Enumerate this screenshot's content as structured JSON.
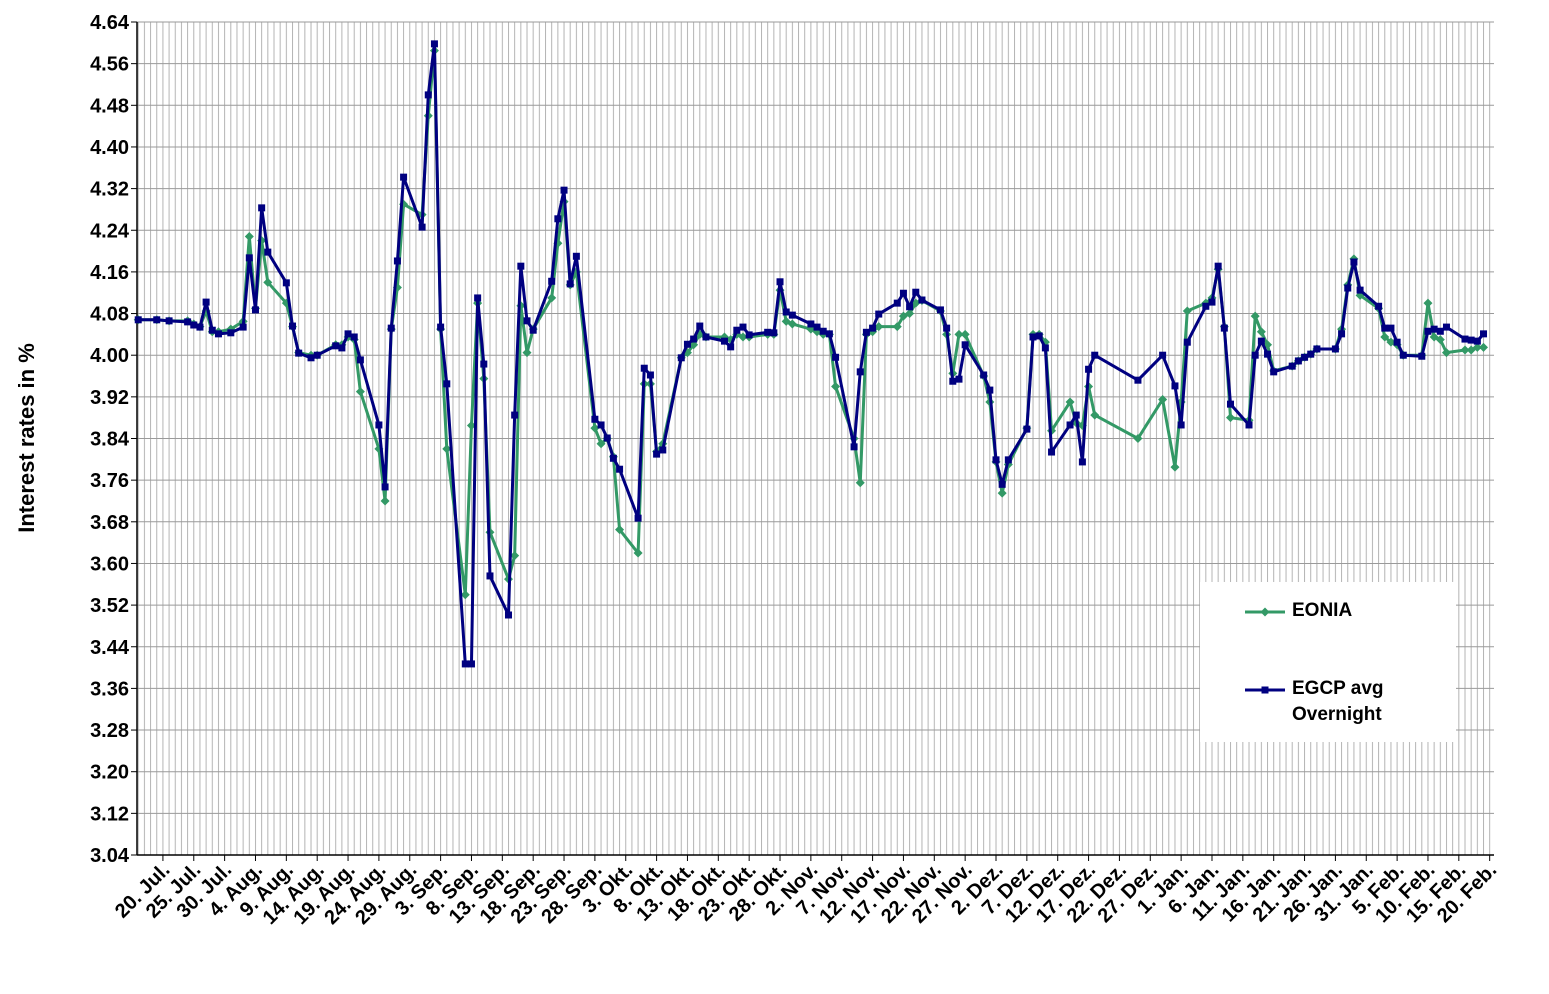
{
  "chart_data": {
    "type": "line",
    "y_label": "Interest rates in %",
    "xlim": [
      -4.2,
      215.7
    ],
    "ylim": [
      3.04,
      4.64
    ],
    "grid": true,
    "yticks": [
      3.04,
      3.12,
      {
        "value": 3.2,
        "label": "3.20"
      },
      3.28,
      3.36,
      3.44,
      3.52,
      {
        "value": 3.6,
        "label": "3.60"
      },
      3.68,
      3.76,
      3.84,
      3.92,
      {
        "value": 4.0,
        "label": "4.00"
      },
      4.08,
      4.16,
      4.24,
      4.32,
      {
        "value": 4.4,
        "label": "4.40"
      },
      4.48,
      4.56,
      4.64
    ],
    "xticks": [
      {
        "value": 0,
        "label": "20. Jul."
      },
      {
        "value": 5,
        "label": "25. Jul."
      },
      {
        "value": 10,
        "label": "30. Jul."
      },
      {
        "value": 15,
        "label": "4. Aug."
      },
      {
        "value": 20,
        "label": "9. Aug."
      },
      {
        "value": 25,
        "label": "14. Aug."
      },
      {
        "value": 30,
        "label": "19. Aug."
      },
      {
        "value": 35,
        "label": "24. Aug."
      },
      {
        "value": 40,
        "label": "29. Aug."
      },
      {
        "value": 45,
        "label": "3. Sep."
      },
      {
        "value": 50,
        "label": "8. Sep."
      },
      {
        "value": 55,
        "label": "13. Sep."
      },
      {
        "value": 60,
        "label": "18. Sep."
      },
      {
        "value": 65,
        "label": "23. Sep."
      },
      {
        "value": 70,
        "label": "28. Sep."
      },
      {
        "value": 75,
        "label": "3. Okt."
      },
      {
        "value": 80,
        "label": "8. Okt."
      },
      {
        "value": 85,
        "label": "13. Okt."
      },
      {
        "value": 90,
        "label": "18. Okt."
      },
      {
        "value": 95,
        "label": "23. Okt."
      },
      {
        "value": 100,
        "label": "28. Okt."
      },
      {
        "value": 105,
        "label": "2. Nov."
      },
      {
        "value": 110,
        "label": "7. Nov."
      },
      {
        "value": 115,
        "label": "12. Nov."
      },
      {
        "value": 120,
        "label": "17. Nov."
      },
      {
        "value": 125,
        "label": "22. Nov."
      },
      {
        "value": 130,
        "label": "27. Nov."
      },
      {
        "value": 135,
        "label": "2. Dez."
      },
      {
        "value": 140,
        "label": "7. Dez."
      },
      {
        "value": 145,
        "label": "12. Dez."
      },
      {
        "value": 150,
        "label": "17. Dez."
      },
      {
        "value": 155,
        "label": "22. Dez."
      },
      {
        "value": 160,
        "label": "27. Dez."
      },
      {
        "value": 165,
        "label": "1. Jan."
      },
      {
        "value": 170,
        "label": "6. Jan."
      },
      {
        "value": 175,
        "label": "11. Jan."
      },
      {
        "value": 180,
        "label": "16. Jan."
      },
      {
        "value": 185,
        "label": "21. Jan."
      },
      {
        "value": 190,
        "label": "26. Jan."
      },
      {
        "value": 195,
        "label": "31. Jan."
      },
      {
        "value": 200,
        "label": "5. Feb."
      },
      {
        "value": 205,
        "label": "10. Feb."
      },
      {
        "value": 210,
        "label": "15. Feb."
      },
      {
        "value": 215,
        "label": "20. Feb."
      }
    ],
    "series": [
      {
        "name": "EONIA",
        "color": "#339966",
        "marker": "diamond",
        "x": [
          -4,
          -1,
          1,
          4,
          5,
          6,
          7,
          8,
          9,
          11,
          13,
          14,
          15,
          16,
          17,
          20,
          21,
          22,
          24,
          25,
          28,
          29,
          30,
          31,
          32,
          35,
          36,
          37,
          38,
          39,
          42,
          43,
          44,
          45,
          46,
          49,
          50,
          51,
          52,
          53,
          56,
          57,
          58,
          59,
          60,
          63,
          64,
          65,
          66,
          67,
          70,
          71,
          72,
          73,
          74,
          77,
          78,
          79,
          80,
          81,
          84,
          85,
          86,
          87,
          88,
          91,
          92,
          93,
          94,
          95,
          98,
          99,
          100,
          101,
          102,
          105,
          106,
          107,
          108,
          109,
          112,
          113,
          114,
          115,
          116,
          119,
          120,
          121,
          122,
          123,
          126,
          127,
          128,
          129,
          130,
          133,
          134,
          135,
          136,
          137,
          140,
          141,
          142,
          143,
          144,
          147,
          148,
          149,
          150,
          151,
          158,
          162,
          164,
          165,
          166,
          169,
          170,
          171,
          172,
          173,
          176,
          177,
          178,
          179,
          180,
          183,
          184,
          185,
          186,
          187,
          190,
          191,
          192,
          193,
          194,
          197,
          198,
          199,
          200,
          201,
          204,
          205,
          206,
          207,
          208,
          211,
          212,
          213,
          214
        ],
        "values": [
          4.068,
          4.068,
          4.066,
          4.066,
          4.06,
          4.055,
          4.085,
          4.045,
          4.045,
          4.05,
          4.065,
          4.228,
          4.09,
          4.22,
          4.14,
          4.1,
          4.055,
          4.005,
          4.0,
          4.0,
          4.02,
          4.02,
          4.035,
          4.03,
          3.93,
          3.82,
          3.72,
          4.05,
          4.13,
          4.29,
          4.27,
          4.46,
          4.585,
          4.05,
          3.82,
          3.54,
          3.865,
          4.1,
          3.955,
          3.66,
          3.57,
          3.615,
          4.095,
          4.005,
          4.05,
          4.11,
          4.215,
          4.295,
          4.135,
          4.16,
          3.86,
          3.83,
          3.84,
          3.805,
          3.665,
          3.62,
          3.945,
          3.945,
          3.815,
          3.83,
          3.995,
          4.005,
          4.02,
          4.04,
          4.035,
          4.035,
          4.03,
          4.04,
          4.035,
          4.035,
          4.04,
          4.04,
          4.125,
          4.065,
          4.06,
          4.05,
          4.045,
          4.04,
          4.04,
          3.94,
          3.84,
          3.755,
          4.04,
          4.045,
          4.055,
          4.055,
          4.075,
          4.08,
          4.1,
          4.105,
          4.085,
          4.04,
          3.965,
          4.04,
          4.04,
          3.96,
          3.91,
          3.795,
          3.735,
          3.79,
          3.86,
          4.04,
          4.04,
          4.025,
          3.855,
          3.91,
          3.87,
          3.865,
          3.94,
          3.885,
          3.84,
          3.915,
          3.785,
          3.91,
          4.085,
          4.1,
          4.11,
          4.165,
          4.055,
          3.88,
          3.875,
          4.075,
          4.045,
          4.02,
          3.97,
          3.979,
          3.989,
          3.996,
          4.002,
          4.012,
          4.012,
          4.05,
          4.135,
          4.185,
          4.115,
          4.09,
          4.035,
          4.025,
          4.02,
          4.0,
          4.0,
          4.1,
          4.035,
          4.03,
          4.005,
          4.01,
          4.01,
          4.015,
          4.015
        ]
      },
      {
        "name": "EGCP avg Overnight",
        "color": "#000080",
        "marker": "square",
        "x": [
          -4,
          -1,
          1,
          4,
          5,
          6,
          7,
          8,
          9,
          11,
          13,
          14,
          15,
          16,
          17,
          20,
          21,
          22,
          24,
          25,
          28,
          29,
          30,
          31,
          32,
          35,
          36,
          37,
          38,
          39,
          42,
          43,
          44,
          45,
          46,
          49,
          50,
          51,
          52,
          53,
          56,
          57,
          58,
          59,
          60,
          63,
          64,
          65,
          66,
          67,
          70,
          71,
          72,
          73,
          74,
          77,
          78,
          79,
          80,
          81,
          84,
          85,
          86,
          87,
          88,
          91,
          92,
          93,
          94,
          95,
          98,
          99,
          100,
          101,
          102,
          105,
          106,
          107,
          108,
          109,
          112,
          113,
          114,
          115,
          116,
          119,
          120,
          121,
          122,
          123,
          126,
          127,
          128,
          129,
          130,
          133,
          134,
          135,
          136,
          137,
          140,
          141,
          142,
          143,
          144,
          147,
          148,
          149,
          150,
          151,
          158,
          162,
          164,
          165,
          166,
          169,
          170,
          171,
          172,
          173,
          176,
          177,
          178,
          179,
          180,
          183,
          184,
          185,
          186,
          187,
          190,
          191,
          192,
          193,
          194,
          197,
          198,
          199,
          200,
          201,
          204,
          205,
          206,
          207,
          208,
          211,
          212,
          213,
          214
        ],
        "values": [
          4.068,
          4.068,
          4.066,
          4.064,
          4.058,
          4.054,
          4.102,
          4.048,
          4.041,
          4.043,
          4.054,
          4.187,
          4.087,
          4.283,
          4.198,
          4.139,
          4.056,
          4.004,
          3.995,
          4.0,
          4.018,
          4.014,
          4.041,
          4.035,
          3.991,
          3.866,
          3.747,
          4.052,
          4.181,
          4.342,
          4.246,
          4.5,
          4.598,
          4.054,
          3.945,
          3.407,
          3.407,
          4.11,
          3.983,
          3.576,
          3.501,
          3.885,
          4.171,
          4.066,
          4.048,
          4.142,
          4.262,
          4.317,
          4.137,
          4.19,
          3.877,
          3.866,
          3.841,
          3.802,
          3.781,
          3.687,
          3.975,
          3.962,
          3.81,
          3.818,
          3.995,
          4.021,
          4.031,
          4.056,
          4.035,
          4.027,
          4.016,
          4.048,
          4.054,
          4.039,
          4.044,
          4.043,
          4.141,
          4.083,
          4.077,
          4.06,
          4.054,
          4.046,
          4.041,
          3.996,
          3.824,
          3.968,
          4.044,
          4.052,
          4.079,
          4.1,
          4.119,
          4.093,
          4.121,
          4.106,
          4.087,
          4.052,
          3.95,
          3.954,
          4.02,
          3.962,
          3.933,
          3.799,
          3.752,
          3.799,
          3.858,
          4.035,
          4.037,
          4.014,
          3.814,
          3.866,
          3.885,
          3.795,
          3.973,
          4.0,
          3.952,
          4.0,
          3.941,
          3.866,
          4.025,
          4.094,
          4.102,
          4.171,
          4.052,
          3.906,
          3.866,
          4.0,
          4.027,
          4.002,
          3.968,
          3.979,
          3.989,
          3.996,
          4.002,
          4.012,
          4.012,
          4.041,
          4.129,
          4.179,
          4.125,
          4.094,
          4.052,
          4.052,
          4.025,
          4.0,
          3.998,
          4.046,
          4.05,
          4.046,
          4.054,
          4.031,
          4.029,
          4.027,
          4.041
        ]
      }
    ]
  }
}
